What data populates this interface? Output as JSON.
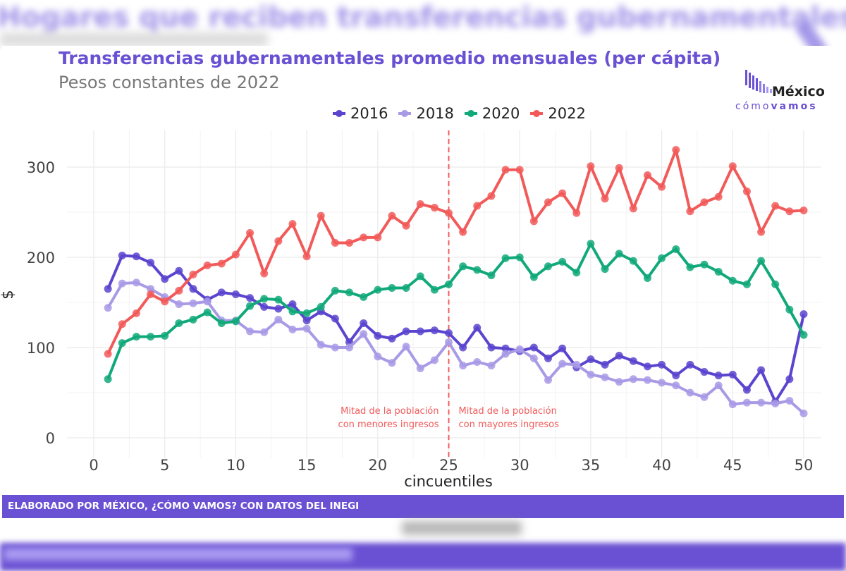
{
  "background": {
    "blurred_heading": "Hogares que reciben transferencias gubernamentales"
  },
  "header": {
    "title": "Transferencias gubernamentales promedio mensuales (per cápita)",
    "subtitle": "Pesos constantes de 2022"
  },
  "logo": {
    "line1": "México",
    "line2_a": "cómo",
    "line2_b": "vamos"
  },
  "footer": {
    "text": "ELABORADO POR MÉXICO, ¿CÓMO VAMOS? CON DATOS DEL INEGI"
  },
  "chart_data": {
    "type": "line",
    "xlabel": "cincuentiles",
    "ylabel": "$",
    "xlim": [
      0,
      50
    ],
    "ylim": [
      0,
      330
    ],
    "xticks": [
      0,
      5,
      10,
      15,
      20,
      25,
      30,
      35,
      40,
      45,
      50
    ],
    "yticks": [
      0,
      100,
      200,
      300
    ],
    "grid": true,
    "legend_position": "top",
    "x": [
      1,
      2,
      3,
      4,
      5,
      6,
      7,
      8,
      9,
      10,
      11,
      12,
      13,
      14,
      15,
      16,
      17,
      18,
      19,
      20,
      21,
      22,
      23,
      24,
      25,
      26,
      27,
      28,
      29,
      30,
      31,
      32,
      33,
      34,
      35,
      36,
      37,
      38,
      39,
      40,
      41,
      42,
      43,
      44,
      45,
      46,
      47,
      48,
      49,
      50
    ],
    "series": [
      {
        "name": "2016",
        "color": "#5b45cf",
        "values": [
          165,
          202,
          201,
          194,
          176,
          185,
          165,
          153,
          161,
          159,
          155,
          145,
          143,
          148,
          130,
          140,
          132,
          106,
          127,
          113,
          110,
          118,
          118,
          119,
          116,
          100,
          122,
          100,
          99,
          96,
          100,
          88,
          99,
          78,
          87,
          81,
          91,
          85,
          79,
          81,
          69,
          81,
          73,
          69,
          70,
          53,
          75,
          40,
          65,
          137
        ]
      },
      {
        "name": "2018",
        "color": "#a99ae6",
        "values": [
          144,
          171,
          172,
          165,
          156,
          148,
          149,
          151,
          130,
          130,
          118,
          117,
          131,
          120,
          121,
          103,
          100,
          100,
          115,
          90,
          83,
          101,
          77,
          86,
          106,
          80,
          84,
          80,
          93,
          98,
          88,
          64,
          82,
          81,
          70,
          67,
          62,
          65,
          64,
          61,
          58,
          50,
          45,
          58,
          37,
          39,
          39,
          38,
          41,
          27
        ]
      },
      {
        "name": "2020",
        "color": "#12a97a",
        "values": [
          65,
          105,
          112,
          112,
          113,
          127,
          131,
          139,
          127,
          129,
          146,
          154,
          153,
          140,
          138,
          145,
          163,
          161,
          156,
          164,
          166,
          166,
          179,
          164,
          170,
          190,
          186,
          180,
          199,
          200,
          178,
          190,
          195,
          183,
          215,
          187,
          204,
          196,
          177,
          199,
          209,
          189,
          192,
          184,
          174,
          170,
          196,
          170,
          142,
          114
        ]
      },
      {
        "name": "2022",
        "color": "#f25a5a",
        "values": [
          93,
          126,
          138,
          159,
          151,
          163,
          181,
          191,
          193,
          203,
          227,
          182,
          218,
          237,
          201,
          246,
          216,
          216,
          222,
          222,
          246,
          235,
          259,
          255,
          249,
          228,
          257,
          268,
          297,
          297,
          240,
          261,
          271,
          249,
          301,
          265,
          299,
          254,
          291,
          278,
          319,
          251,
          261,
          267,
          301,
          273,
          228,
          257,
          251,
          252
        ]
      }
    ],
    "reference_line": {
      "x": 25,
      "color": "#f25a5a"
    },
    "annotations": [
      {
        "text_line1": "Mitad de la población",
        "text_line2": "con menores ingresos"
      },
      {
        "text_line1": "Mitad de la población",
        "text_line2": "con mayores ingresos"
      }
    ]
  }
}
